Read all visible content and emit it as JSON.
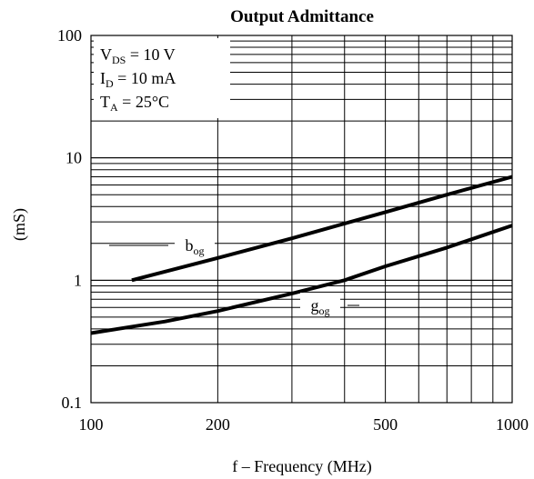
{
  "chart_data": {
    "type": "line",
    "title": "Output Admittance",
    "xlabel": "f – Frequency (MHz)",
    "ylabel": "(mS)",
    "x_scale": "log",
    "y_scale": "log",
    "xlim": [
      100,
      1000
    ],
    "ylim": [
      0.1,
      100
    ],
    "grid": true,
    "x_ticks": [
      100,
      200,
      500,
      1000
    ],
    "x_tick_labels": [
      "100",
      "200",
      "500",
      "1000"
    ],
    "y_ticks": [
      0.1,
      1,
      10,
      100
    ],
    "y_tick_labels": [
      "0.1",
      "1",
      "10",
      "100"
    ],
    "conditions": [
      {
        "main": "V",
        "sub": "DS",
        "rest": " = 10 V"
      },
      {
        "main": "I",
        "sub": "D",
        "rest": " = 10 mA"
      },
      {
        "main": "T",
        "sub": "A",
        "rest": " = 25°C"
      }
    ],
    "series": [
      {
        "name": "bog",
        "label_main": "b",
        "label_sub": "og",
        "x": [
          125,
          200,
          300,
          500,
          700,
          1000
        ],
        "y": [
          1.0,
          1.52,
          2.2,
          3.6,
          5.0,
          7.0
        ]
      },
      {
        "name": "gog",
        "label_main": "g",
        "label_sub": "og",
        "x": [
          100,
          150,
          200,
          300,
          400,
          500,
          700,
          1000
        ],
        "y": [
          0.37,
          0.46,
          0.56,
          0.78,
          1.0,
          1.3,
          1.85,
          2.8
        ]
      }
    ]
  }
}
